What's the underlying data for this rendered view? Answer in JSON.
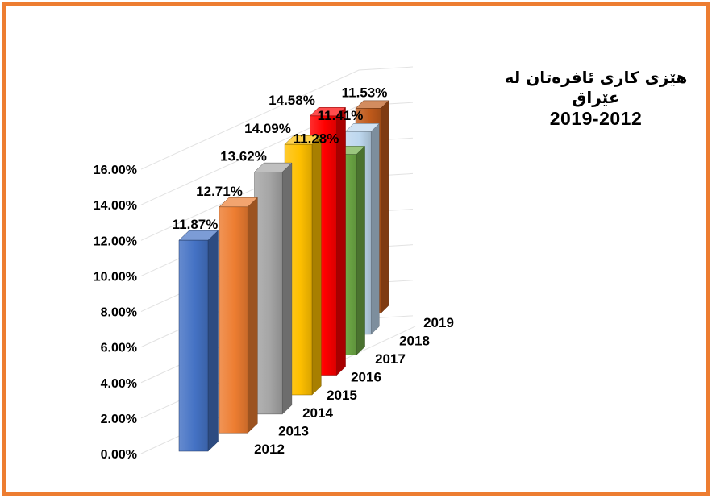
{
  "frame": {
    "border_color": "#ED7D31",
    "background": "#FFFFFF"
  },
  "title": {
    "line1": "هێزی کاری ئافرەتان له عێراق",
    "line2": "2019-2012"
  },
  "chart_data": {
    "type": "bar",
    "projection": "3d-column",
    "title": "هێزی کاری ئافرەتان له عێراق 2019-2012",
    "categories": [
      "2012",
      "2013",
      "2014",
      "2015",
      "2016",
      "2017",
      "2018",
      "2019"
    ],
    "values": [
      11.87,
      12.71,
      13.62,
      14.09,
      14.58,
      11.28,
      11.41,
      11.53
    ],
    "data_labels": [
      "11.87%",
      "12.71%",
      "13.62%",
      "14.09%",
      "14.58%",
      "11.28%",
      "11.41%",
      "11.53%"
    ],
    "bar_colors": [
      "#4472C4",
      "#ED7D31",
      "#A5A5A5",
      "#FFC000",
      "#FF0000",
      "#70AD47",
      "#BDD7EE",
      "#C05A1B"
    ],
    "y_axis": {
      "min": 0,
      "max": 16,
      "step": 2,
      "tick_labels": [
        "0.00%",
        "2.00%",
        "4.00%",
        "6.00%",
        "8.00%",
        "10.00%",
        "12.00%",
        "14.00%",
        "16.00%"
      ]
    },
    "gridlines": true,
    "gridline_color": "#E2E2E2",
    "legend": "none",
    "xlabel": "",
    "ylabel": ""
  }
}
